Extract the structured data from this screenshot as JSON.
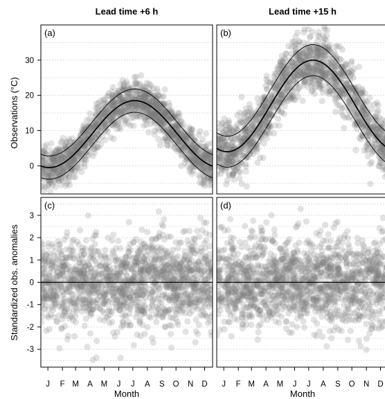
{
  "chart_data": [
    {
      "id": "a",
      "type": "scatter",
      "panel_label": "(a)",
      "title": "Lead time +6 h",
      "xlabel": "",
      "ylabel": "Observations (°C)",
      "x_categories": [
        "J",
        "F",
        "M",
        "A",
        "M",
        "J",
        "J",
        "A",
        "S",
        "O",
        "N",
        "D"
      ],
      "ylim": [
        -8,
        40
      ],
      "yticks": [
        0,
        10,
        20,
        30
      ],
      "grid": true,
      "climatology": {
        "mean": -0.5,
        "amplitude": 19.0,
        "peak_day": 200,
        "spread": 3.3,
        "noise": 3.0
      }
    },
    {
      "id": "b",
      "type": "scatter",
      "panel_label": "(b)",
      "title": "Lead time +15 h",
      "xlabel": "",
      "ylabel": "",
      "x_categories": [
        "J",
        "F",
        "M",
        "A",
        "M",
        "J",
        "J",
        "A",
        "S",
        "O",
        "N",
        "D"
      ],
      "ylim": [
        -8,
        40
      ],
      "yticks": [
        0,
        10,
        20,
        30
      ],
      "grid": true,
      "climatology": {
        "mean": 4.0,
        "amplitude": 26.0,
        "peak_day": 205,
        "spread": 4.4,
        "noise": 4.3
      }
    },
    {
      "id": "c",
      "type": "scatter",
      "panel_label": "(c)",
      "title": "",
      "xlabel": "Month",
      "ylabel": "Standardized obs. anomalies",
      "x_categories": [
        "J",
        "F",
        "M",
        "A",
        "M",
        "J",
        "J",
        "A",
        "S",
        "O",
        "N",
        "D"
      ],
      "ylim": [
        -3.8,
        3.8
      ],
      "yticks": [
        -3,
        -2,
        -1,
        0,
        1,
        2,
        3
      ],
      "grid": true,
      "reference_line": 0
    },
    {
      "id": "d",
      "type": "scatter",
      "panel_label": "(d)",
      "title": "",
      "xlabel": "Month",
      "ylabel": "",
      "x_categories": [
        "J",
        "F",
        "M",
        "A",
        "M",
        "J",
        "J",
        "A",
        "S",
        "O",
        "N",
        "D"
      ],
      "ylim": [
        -3.8,
        3.8
      ],
      "yticks": [
        -3,
        -2,
        -1,
        0,
        1,
        2,
        3
      ],
      "grid": true,
      "reference_line": 0
    }
  ]
}
